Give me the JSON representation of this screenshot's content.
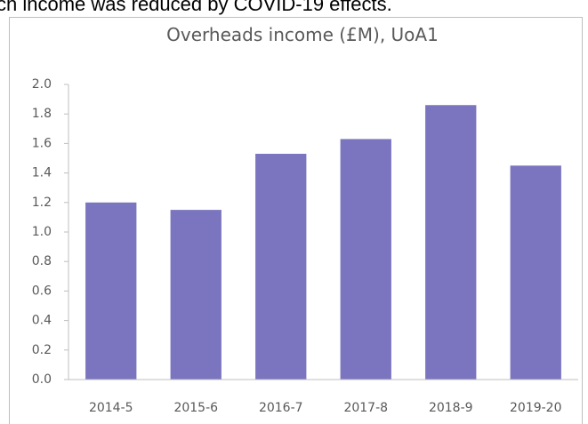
{
  "caption": "ch income was reduced by COVID-19 effects.",
  "chart_data": {
    "type": "bar",
    "title": "Overheads income (£M), UoA1",
    "categories": [
      "2014-5",
      "2015-6",
      "2016-7",
      "2017-8",
      "2018-9",
      "2019-20"
    ],
    "values": [
      1.2,
      1.15,
      1.53,
      1.63,
      1.86,
      1.45
    ],
    "color": "#7b75bf",
    "ylim": [
      0,
      2.0
    ],
    "yticks": [
      {
        "value": 0,
        "label": "0.0"
      },
      {
        "value": 0.2,
        "label": "0.2"
      },
      {
        "value": 0.4,
        "label": "0.4"
      },
      {
        "value": 0.6,
        "label": "0.6"
      },
      {
        "value": 0.8,
        "label": "0.8"
      },
      {
        "value": 1.0,
        "label": "1.0"
      },
      {
        "value": 1.2,
        "label": "1.2"
      },
      {
        "value": 1.4,
        "label": "1.4"
      },
      {
        "value": 1.6,
        "label": "1.6"
      },
      {
        "value": 1.8,
        "label": "1.8"
      },
      {
        "value": 2.0,
        "label": "2.0"
      }
    ],
    "grid": false
  }
}
